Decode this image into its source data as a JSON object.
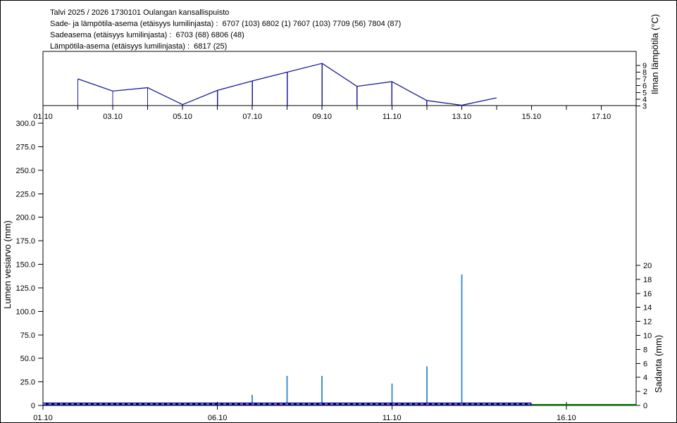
{
  "header": {
    "line1": "Talvi 2025 / 2026 1730101 Oulangan kansallispuisto",
    "line2": "Sade- ja lämpötila-asema (etäisyys lumilinjasta) :  6707 (103) 6802 (1) 7607 (103) 7709 (56) 7804 (87)",
    "line3": "Sadeasema (etäisyys lumilinjasta) :  6703 (68) 6806 (48)",
    "line4": "Lämpötila-asema (etäisyys lumilinjasta) :  6817 (25)"
  },
  "colors": {
    "background": "#ffffff",
    "axis": "#000000",
    "temperature_line": "#1c1c9c",
    "precipitation_bar": "#4590d0",
    "snow_water_line": "#000080",
    "snow_water_dash": "#ffffff",
    "green_line": "#007a00"
  },
  "chart_data": [
    {
      "type": "line",
      "name": "air-temperature",
      "axis_right": {
        "label": "Ilman lämpötila (°C)",
        "ticks": [
          3,
          4,
          5,
          6,
          7,
          8,
          9
        ],
        "range": [
          3,
          11
        ]
      },
      "x_axis": {
        "total_days": 17,
        "tick_every_day": true,
        "day_labels": [
          {
            "day": 0,
            "text": "01.10"
          },
          {
            "day": 2,
            "text": "03.10"
          },
          {
            "day": 4,
            "text": "05.10"
          },
          {
            "day": 6,
            "text": "07.10"
          },
          {
            "day": 8,
            "text": "09.10"
          },
          {
            "day": 10,
            "text": "11.10"
          },
          {
            "day": 12,
            "text": "13.10"
          },
          {
            "day": 14,
            "text": "15.10"
          },
          {
            "day": 16,
            "text": "17.10"
          }
        ]
      },
      "series": [
        {
          "name": "air-temperature-line",
          "style": "line-with-drop-lines",
          "color_key": "temperature_line",
          "points": [
            {
              "day": 1,
              "date": "02.10",
              "value": 7.0
            },
            {
              "day": 2,
              "date": "03.10",
              "value": 5.2
            },
            {
              "day": 3,
              "date": "04.10",
              "value": 5.7
            },
            {
              "day": 4,
              "date": "05.10",
              "value": 3.2
            },
            {
              "day": 5,
              "date": "06.10",
              "value": 5.3
            },
            {
              "day": 6,
              "date": "07.10",
              "value": 6.7
            },
            {
              "day": 7,
              "date": "08.10",
              "value": 8.0
            },
            {
              "day": 8,
              "date": "09.10",
              "value": 9.3
            },
            {
              "day": 9,
              "date": "10.10",
              "value": 5.9
            },
            {
              "day": 10,
              "date": "11.10",
              "value": 6.6
            },
            {
              "day": 11,
              "date": "12.10",
              "value": 3.8
            },
            {
              "day": 12,
              "date": "13.10",
              "value": 3.1
            },
            {
              "day": 13,
              "date": "14.10",
              "value": 4.2
            }
          ]
        }
      ]
    },
    {
      "type": "combo",
      "name": "snow-water-and-precipitation",
      "axis_left": {
        "label": "Lumen vesiarvo (mm)",
        "range": [
          0,
          300
        ],
        "ticks": [
          {
            "value": 0,
            "text": "0"
          },
          {
            "value": 25,
            "text": "25.0"
          },
          {
            "value": 50,
            "text": "50.0"
          },
          {
            "value": 75,
            "text": "75.0"
          },
          {
            "value": 100,
            "text": "100.0"
          },
          {
            "value": 125,
            "text": "125.0"
          },
          {
            "value": 150,
            "text": "150.0"
          },
          {
            "value": 175,
            "text": "175.0"
          },
          {
            "value": 200,
            "text": "200.0"
          },
          {
            "value": 225,
            "text": "225.0"
          },
          {
            "value": 250,
            "text": "250.0"
          },
          {
            "value": 275,
            "text": "275.0"
          },
          {
            "value": 300,
            "text": "300.0"
          }
        ]
      },
      "axis_right": {
        "label": "Sadanta (mm)",
        "range": [
          0,
          20
        ],
        "ticks": [
          0,
          2,
          4,
          6,
          8,
          10,
          12,
          14,
          16,
          18,
          20
        ]
      },
      "x_axis": {
        "total_days": 17,
        "day_labels": [
          {
            "day": 0,
            "text": "01.10"
          },
          {
            "day": 5,
            "text": "06.10"
          },
          {
            "day": 10,
            "text": "11.10"
          },
          {
            "day": 15,
            "text": "16.10"
          }
        ]
      },
      "series": [
        {
          "name": "precipitation-bars",
          "type": "bar",
          "color_key": "precipitation_bar",
          "points": [
            {
              "day": 6,
              "date": "07.10",
              "value": 1.5
            },
            {
              "day": 7,
              "date": "08.10",
              "value": 4.2
            },
            {
              "day": 8,
              "date": "09.10",
              "value": 4.2
            },
            {
              "day": 10,
              "date": "11.10",
              "value": 3.1
            },
            {
              "day": 11,
              "date": "12.10",
              "value": 5.6
            },
            {
              "day": 12,
              "date": "13.10",
              "value": 18.7
            }
          ]
        },
        {
          "name": "snow-water-equivalent-zero-line",
          "type": "hline",
          "style": "navy-white-dashed",
          "from_day": 0,
          "to_day": 14,
          "value": 0
        },
        {
          "name": "green-zero-line",
          "type": "hline",
          "style": "solid-green",
          "from_day": 14,
          "to_day": 17,
          "value": 0
        }
      ]
    }
  ]
}
